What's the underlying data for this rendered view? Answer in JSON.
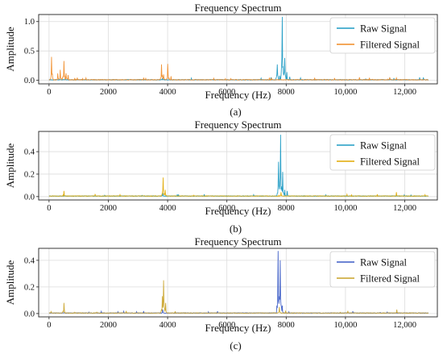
{
  "chart_data": [
    {
      "type": "line",
      "panel_label": "(a)",
      "title": "Frequency Spectrum",
      "xlabel": "Frequency (Hz)",
      "ylabel": "Amplitude",
      "xlim": [
        -350,
        13100
      ],
      "ylim": [
        -0.06,
        1.12
      ],
      "x_ticks": [
        0,
        2000,
        4000,
        6000,
        8000,
        10000,
        12000
      ],
      "x_tick_labels": [
        "0",
        "2000",
        "4000",
        "6000",
        "8000",
        "10,000",
        "12,000"
      ],
      "y_ticks": [
        0.0,
        0.5,
        1.0
      ],
      "y_tick_labels": [
        "0.0",
        "0.5",
        "1.0"
      ],
      "grid": true,
      "legend_position": "top-right",
      "series": [
        {
          "name": "Raw Signal",
          "color": "#1f9bc4",
          "baseline": 0.01,
          "peaks": [
            [
              7700,
              0.27
            ],
            [
              7780,
              0.08
            ],
            [
              7870,
              1.08
            ],
            [
              7950,
              0.38
            ],
            [
              8020,
              0.14
            ],
            [
              8120,
              0.06
            ],
            [
              8480,
              0.04
            ],
            [
              3820,
              0.03
            ],
            [
              540,
              0.03
            ]
          ]
        },
        {
          "name": "Filtered Signal",
          "color": "#f08a24",
          "baseline": 0.01,
          "peaks": [
            [
              90,
              0.4
            ],
            [
              300,
              0.12
            ],
            [
              380,
              0.18
            ],
            [
              500,
              0.33
            ],
            [
              580,
              0.12
            ],
            [
              640,
              0.09
            ],
            [
              1250,
              0.04
            ],
            [
              3800,
              0.27
            ],
            [
              3870,
              0.1
            ],
            [
              4010,
              0.28
            ],
            [
              4110,
              0.07
            ],
            [
              11500,
              0.05
            ],
            [
              11720,
              0.04
            ]
          ]
        }
      ]
    },
    {
      "type": "line",
      "panel_label": "(b)",
      "title": "Frequency Spectrum",
      "xlabel": "Frequency (Hz)",
      "ylabel": "Amplitude",
      "xlim": [
        -350,
        13100
      ],
      "ylim": [
        -0.03,
        0.58
      ],
      "x_ticks": [
        0,
        2000,
        4000,
        6000,
        8000,
        10000,
        12000
      ],
      "x_tick_labels": [
        "0",
        "2000",
        "4000",
        "6000",
        "8000",
        "10,000",
        "12,000"
      ],
      "y_ticks": [
        0.0,
        0.2,
        0.4
      ],
      "y_tick_labels": [
        "0.0",
        "0.2",
        "0.4"
      ],
      "grid": true,
      "legend_position": "top-right",
      "series": [
        {
          "name": "Raw Signal",
          "color": "#1f9bc4",
          "baseline": 0.005,
          "peaks": [
            [
              7740,
              0.31
            ],
            [
              7810,
              0.55
            ],
            [
              7880,
              0.22
            ],
            [
              7950,
              0.06
            ],
            [
              8040,
              0.05
            ],
            [
              3830,
              0.03
            ]
          ]
        },
        {
          "name": "Filtered Signal",
          "color": "#e0a800",
          "baseline": 0.005,
          "peaks": [
            [
              500,
              0.05
            ],
            [
              3850,
              0.17
            ],
            [
              3920,
              0.06
            ],
            [
              7820,
              0.04
            ],
            [
              10050,
              0.02
            ],
            [
              11720,
              0.04
            ]
          ]
        }
      ]
    },
    {
      "type": "line",
      "panel_label": "(c)",
      "title": "Frequency Spectrum",
      "xlabel": "Frequency (Hz)",
      "ylabel": "Amplitude",
      "xlim": [
        -350,
        13100
      ],
      "ylim": [
        -0.025,
        0.49
      ],
      "x_ticks": [
        0,
        2000,
        4000,
        6000,
        8000,
        10000,
        12000
      ],
      "x_tick_labels": [
        "0",
        "2000",
        "4000",
        "6000",
        "8000",
        "10,000",
        "12,000"
      ],
      "y_ticks": [
        0.0,
        0.2,
        0.4
      ],
      "y_tick_labels": [
        "0.0",
        "0.2",
        "0.4"
      ],
      "grid": true,
      "legend_position": "top-right",
      "series": [
        {
          "name": "Raw Signal",
          "color": "#3b5cc6",
          "baseline": 0.004,
          "peaks": [
            [
              7730,
              0.47
            ],
            [
              7800,
              0.4
            ],
            [
              7770,
              0.13
            ],
            [
              7870,
              0.06
            ],
            [
              3840,
              0.03
            ]
          ]
        },
        {
          "name": "Filtered Signal",
          "color": "#c9a227",
          "baseline": 0.004,
          "peaks": [
            [
              500,
              0.08
            ],
            [
              3820,
              0.13
            ],
            [
              3870,
              0.25
            ],
            [
              3930,
              0.08
            ],
            [
              7770,
              0.05
            ],
            [
              10080,
              0.02
            ],
            [
              11730,
              0.03
            ]
          ]
        }
      ]
    }
  ]
}
